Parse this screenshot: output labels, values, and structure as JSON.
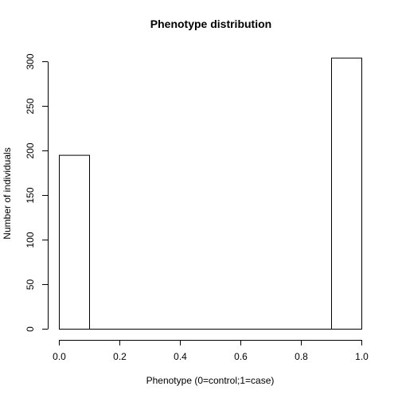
{
  "chart_data": {
    "type": "bar",
    "title": "Phenotype distribution",
    "xlabel": "Phenotype (0=control;1=case)",
    "ylabel": "Number of individuals",
    "bin_width": 0.1,
    "bins": [
      {
        "x0": 0.0,
        "x1": 0.1,
        "count": 195
      },
      {
        "x0": 0.1,
        "x1": 0.2,
        "count": 0
      },
      {
        "x0": 0.2,
        "x1": 0.3,
        "count": 0
      },
      {
        "x0": 0.3,
        "x1": 0.4,
        "count": 0
      },
      {
        "x0": 0.4,
        "x1": 0.5,
        "count": 0
      },
      {
        "x0": 0.5,
        "x1": 0.6,
        "count": 0
      },
      {
        "x0": 0.6,
        "x1": 0.7,
        "count": 0
      },
      {
        "x0": 0.7,
        "x1": 0.8,
        "count": 0
      },
      {
        "x0": 0.8,
        "x1": 0.9,
        "count": 0
      },
      {
        "x0": 0.9,
        "x1": 1.0,
        "count": 304
      }
    ],
    "xlim": [
      0,
      1
    ],
    "ylim": [
      0,
      304
    ],
    "x_ticks": [
      0.0,
      0.2,
      0.4,
      0.6,
      0.8,
      1.0
    ],
    "x_tick_labels": [
      "0.0",
      "0.2",
      "0.4",
      "0.6",
      "0.8",
      "1.0"
    ],
    "y_ticks": [
      0,
      50,
      100,
      150,
      200,
      250,
      300
    ],
    "y_tick_labels": [
      "0",
      "50",
      "100",
      "150",
      "200",
      "250",
      "300"
    ],
    "grid": false,
    "legend": "none"
  }
}
